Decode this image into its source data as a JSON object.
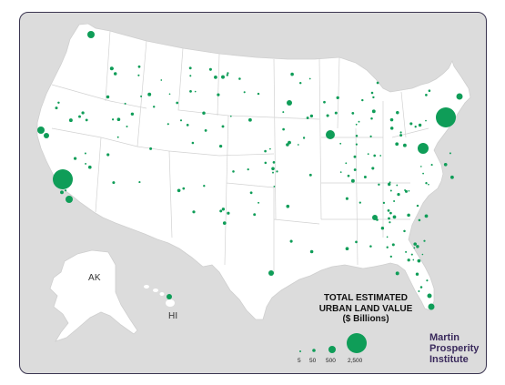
{
  "labels": {
    "ak": "AK",
    "hi": "HI"
  },
  "legend": {
    "title_line1": "TOTAL ESTIMATED",
    "title_line2": "URBAN LAND VALUE",
    "title_line3": "($ Billions)",
    "sizes": [
      "5",
      "50",
      "500",
      "2,500"
    ]
  },
  "brand": {
    "line1": "Martin",
    "line2": "Prosperity",
    "line3": "Institute"
  },
  "colors": {
    "dot": "#0f9d58",
    "land": "#ffffff",
    "background": "#dcdcdc",
    "border": "#3a3550",
    "brand": "#3a2a5c"
  },
  "icons": {
    "ak_shape": "alaska-shape",
    "hi_shape": "hawaii-shape",
    "us_shape": "us-mainland-shape"
  }
}
